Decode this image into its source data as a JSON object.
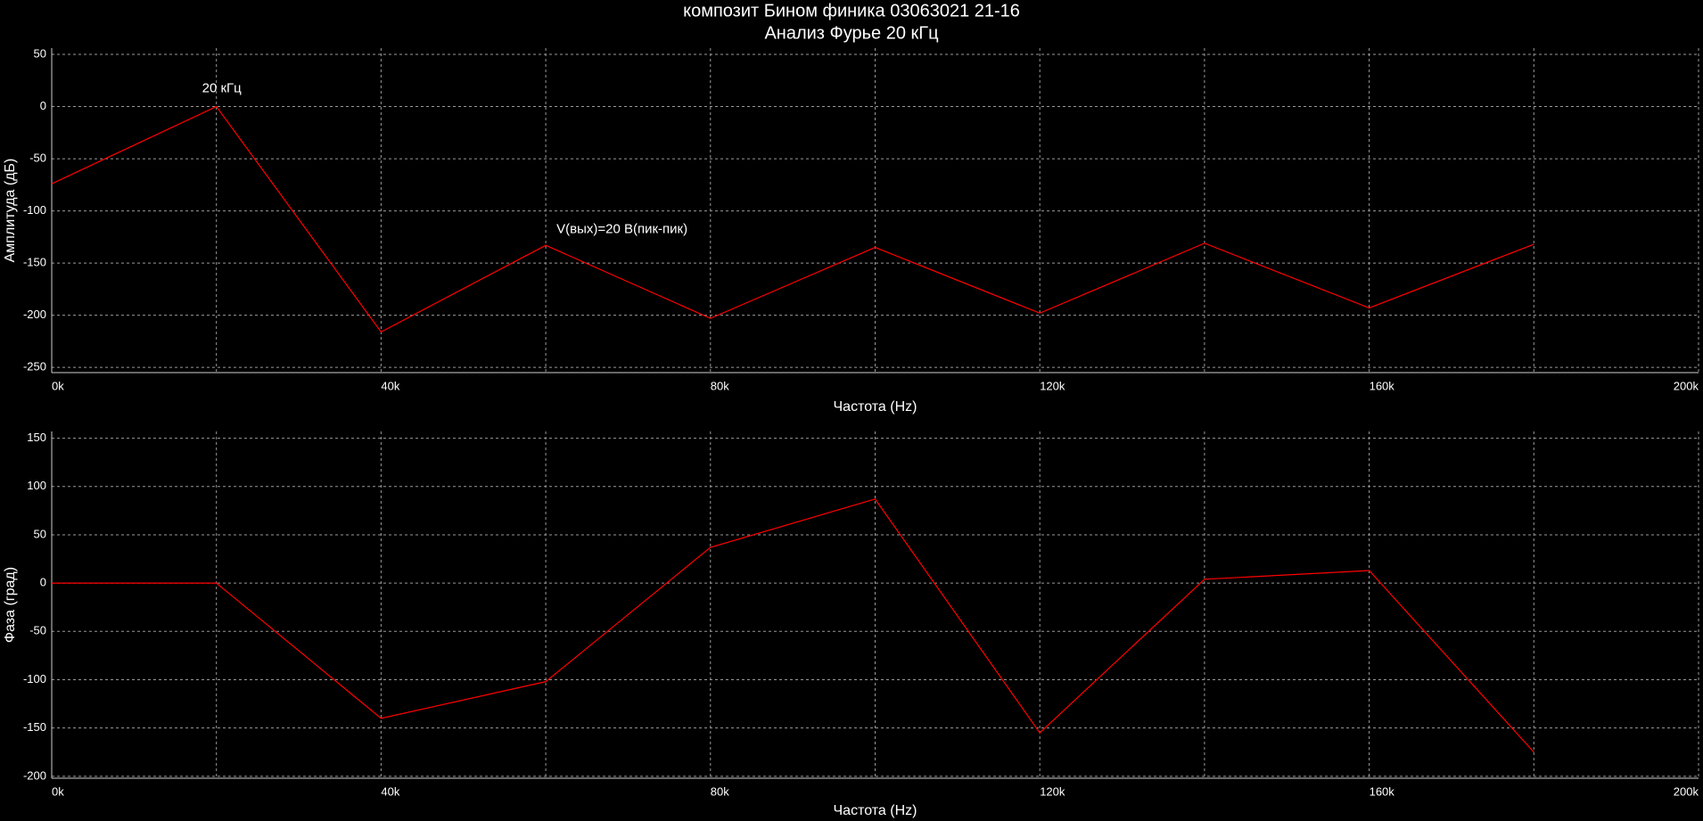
{
  "chart_data": [
    {
      "type": "line",
      "title": "композит Бином финика  03063021 21-16",
      "subtitle": "Анализ Фурье 20 кГц",
      "x_label": "Частота (Hz)",
      "y_label": "Амплитуда (дБ)",
      "annotations": [
        "20 кГц",
        "V(вых)=20 В(пик-пик)"
      ],
      "x": [
        0,
        20000,
        40000,
        60000,
        80000,
        100000,
        120000,
        140000,
        160000,
        180000
      ],
      "series": [
        {
          "color": "#ff0000",
          "values": [
            -74,
            0,
            -216,
            -133,
            -203,
            -135,
            -198,
            -131,
            -193,
            -132
          ]
        }
      ],
      "xlim": [
        0,
        200000
      ],
      "xticks": [
        {
          "value": 0,
          "label": "0k"
        },
        {
          "value": 20000,
          "label": null
        },
        {
          "value": 40000,
          "label": "40k"
        },
        {
          "value": 60000,
          "label": null
        },
        {
          "value": 80000,
          "label": "80k"
        },
        {
          "value": 100000,
          "label": null
        },
        {
          "value": 120000,
          "label": "120k"
        },
        {
          "value": 140000,
          "label": null
        },
        {
          "value": 160000,
          "label": "160k"
        },
        {
          "value": 180000,
          "label": null
        },
        {
          "value": 200000,
          "label": "200k"
        }
      ],
      "ylim": [
        -255,
        56
      ],
      "yticks": [
        50,
        0,
        -50,
        -100,
        -150,
        -200,
        -250
      ],
      "grid": true
    },
    {
      "type": "line",
      "x_label": "Частота (Hz)",
      "y_label": "Фаза (град)",
      "x": [
        0,
        20000,
        40000,
        60000,
        80000,
        100000,
        120000,
        140000,
        160000,
        180000
      ],
      "series": [
        {
          "color": "#ff0000",
          "values": [
            0,
            0,
            -140,
            -102,
            37,
            87,
            -155,
            4,
            13,
            -175
          ]
        }
      ],
      "xlim": [
        0,
        200000
      ],
      "xticks": [
        {
          "value": 0,
          "label": "0k"
        },
        {
          "value": 20000,
          "label": null
        },
        {
          "value": 40000,
          "label": "40k"
        },
        {
          "value": 60000,
          "label": null
        },
        {
          "value": 80000,
          "label": "80k"
        },
        {
          "value": 100000,
          "label": null
        },
        {
          "value": 120000,
          "label": "120k"
        },
        {
          "value": 140000,
          "label": null
        },
        {
          "value": 160000,
          "label": "160k"
        },
        {
          "value": 180000,
          "label": null
        },
        {
          "value": 200000,
          "label": "200k"
        }
      ],
      "ylim": [
        -202,
        157
      ],
      "yticks": [
        150,
        100,
        50,
        0,
        -50,
        -100,
        -150,
        -200
      ],
      "grid": true
    }
  ]
}
